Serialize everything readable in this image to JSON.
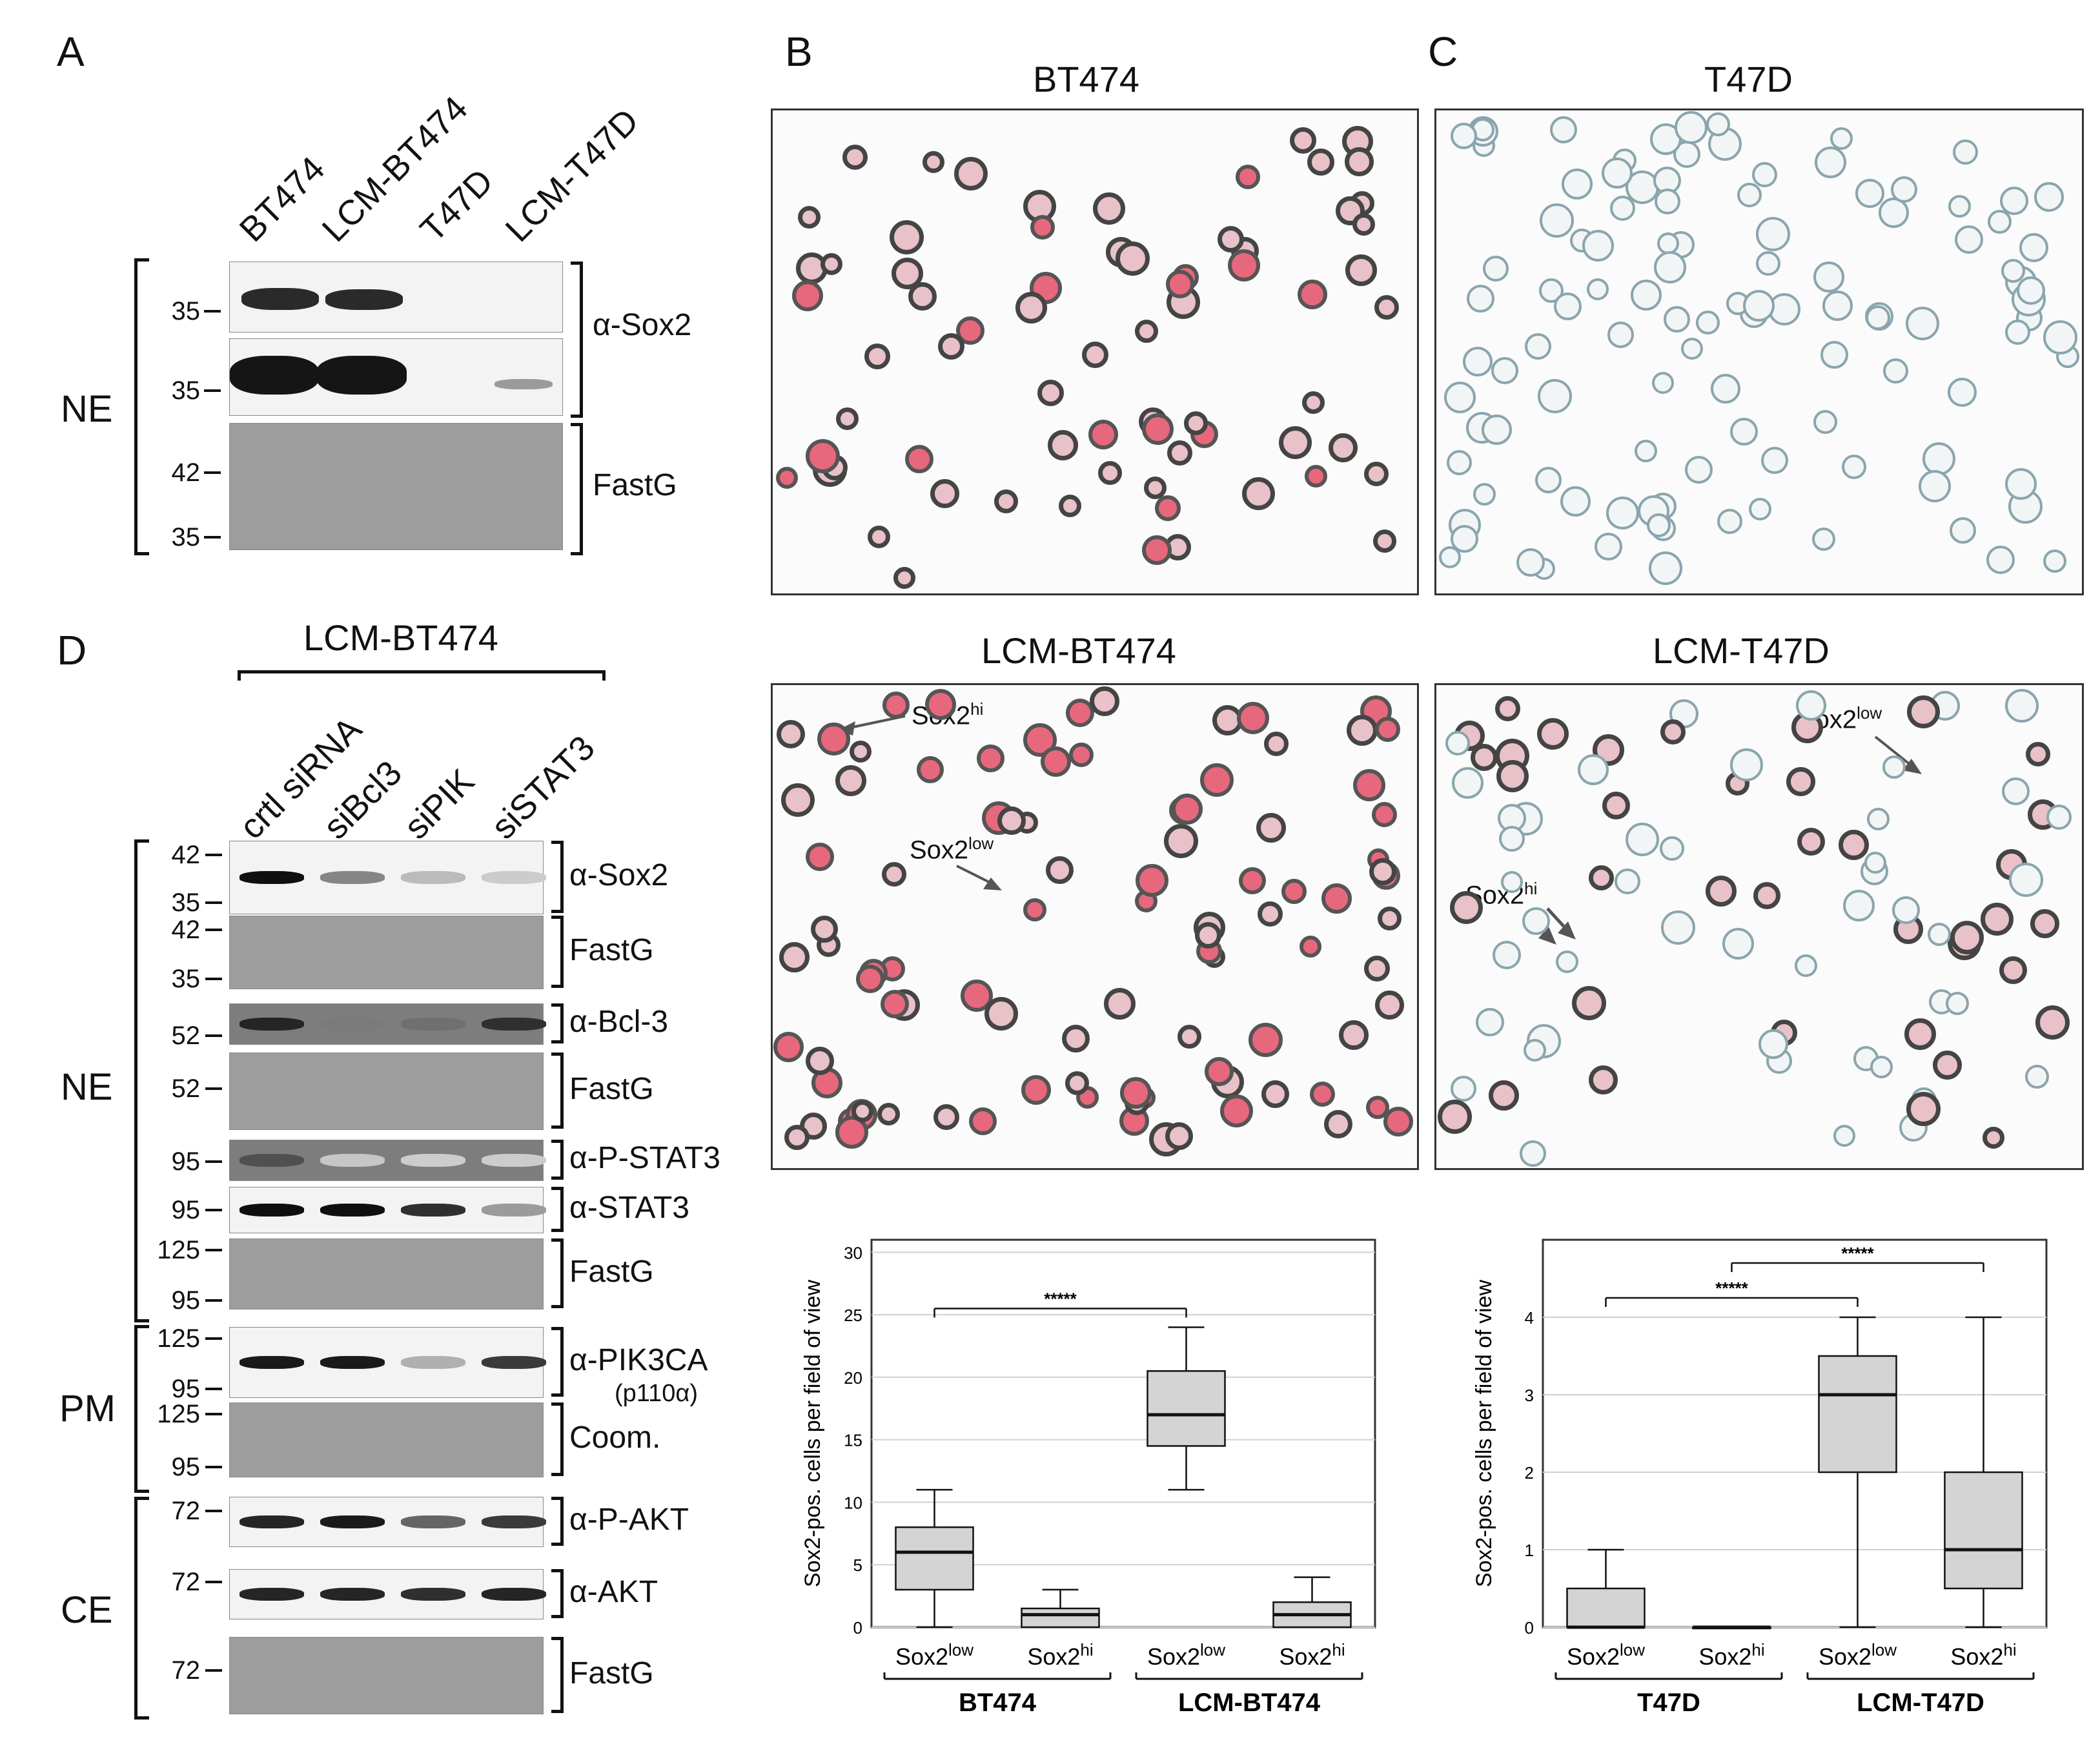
{
  "panel_labels": {
    "a": "A",
    "b": "B",
    "c": "C",
    "d": "D"
  },
  "panelA": {
    "lanes": [
      "BT474",
      "LCM-BT474",
      "T47D",
      "LCM-T47D"
    ],
    "group": "NE",
    "mw": {
      "sox2_short": "35",
      "sox2_long": "35",
      "fastg_top": "42",
      "fastg_bottom": "35"
    },
    "antibodies": {
      "sox2": "α-Sox2",
      "fastg": "FastG"
    }
  },
  "panelB": {
    "title_top": "BT474",
    "title_bottom": "LCM-BT474",
    "ann_hi": "Sox2",
    "ann_hi_sup": "hi",
    "ann_low": "Sox2",
    "ann_low_sup": "low"
  },
  "panelC": {
    "title_top": "T47D",
    "title_bottom": "LCM-T47D",
    "ann_hi": "Sox2",
    "ann_hi_sup": "hi",
    "ann_low": "Sox2",
    "ann_low_sup": "low"
  },
  "panelD": {
    "header": "LCM-BT474",
    "lanes": [
      "crtl siRNA",
      "siBcl3",
      "siPIK",
      "siSTAT3"
    ],
    "groups": {
      "ne": "NE",
      "pm": "PM",
      "ce": "CE"
    },
    "strips": [
      {
        "ab": "α-Sox2",
        "mw": [
          "42",
          "35"
        ]
      },
      {
        "ab": "FastG",
        "mw": [
          "42",
          "35"
        ]
      },
      {
        "ab": "α-Bcl-3",
        "mw": [
          "52"
        ]
      },
      {
        "ab": "FastG",
        "mw": [
          "52"
        ]
      },
      {
        "ab": "α-P-STAT3",
        "mw": [
          "95"
        ]
      },
      {
        "ab": "α-STAT3",
        "mw": [
          "95"
        ]
      },
      {
        "ab": "FastG",
        "mw": [
          "125",
          "95"
        ]
      },
      {
        "ab": "α-PIK3CA",
        "sub": "(p110α)",
        "mw": [
          "125",
          "95"
        ]
      },
      {
        "ab": "Coom.",
        "mw": [
          "125",
          "95"
        ]
      },
      {
        "ab": "α-P-AKT",
        "mw": [
          "72"
        ]
      },
      {
        "ab": "α-AKT",
        "mw": [
          "72"
        ]
      },
      {
        "ab": "FastG",
        "mw": [
          "72"
        ]
      }
    ]
  },
  "chart_data": [
    {
      "type": "box",
      "ylabel": "Sox2-pos. cells per field of view",
      "ylim": [
        0,
        31
      ],
      "yticks": [
        0,
        5,
        10,
        15,
        20,
        25,
        30
      ],
      "grid": true,
      "categories": [
        "Sox2low",
        "Sox2hi",
        "Sox2low",
        "Sox2hi"
      ],
      "category_main": [
        "Sox2",
        "Sox2",
        "Sox2",
        "Sox2"
      ],
      "category_sup": [
        "low",
        "hi",
        "low",
        "hi"
      ],
      "groups": [
        "BT474",
        "LCM-BT474"
      ],
      "boxes": [
        {
          "min": 0,
          "q1": 3,
          "median": 6,
          "q3": 8,
          "max": 11
        },
        {
          "min": 0,
          "q1": 0,
          "median": 1,
          "q3": 1.5,
          "max": 3
        },
        {
          "min": 11,
          "q1": 14.5,
          "median": 17,
          "q3": 20.5,
          "max": 24
        },
        {
          "min": 0,
          "q1": 0,
          "median": 1,
          "q3": 2,
          "max": 4
        }
      ],
      "significance": [
        {
          "from": 0,
          "to": 2,
          "label": "*****",
          "y": 25.5
        }
      ]
    },
    {
      "type": "box",
      "ylabel": "Sox2-pos. cells per field of view",
      "ylim": [
        0,
        5
      ],
      "yticks": [
        0,
        1,
        2,
        3,
        4
      ],
      "grid": true,
      "categories": [
        "Sox2low",
        "Sox2hi",
        "Sox2low",
        "Sox2hi"
      ],
      "category_main": [
        "Sox2",
        "Sox2",
        "Sox2",
        "Sox2"
      ],
      "category_sup": [
        "low",
        "hi",
        "low",
        "hi"
      ],
      "groups": [
        "T47D",
        "LCM-T47D"
      ],
      "boxes": [
        {
          "min": 0,
          "q1": 0,
          "median": 0,
          "q3": 0.5,
          "max": 1
        },
        {
          "min": 0,
          "q1": 0,
          "median": 0,
          "q3": 0,
          "max": 0
        },
        {
          "min": 0,
          "q1": 2,
          "median": 3,
          "q3": 3.5,
          "max": 4
        },
        {
          "min": 0,
          "q1": 0.5,
          "median": 1,
          "q3": 2,
          "max": 4
        }
      ],
      "significance": [
        {
          "from": 0,
          "to": 2,
          "label": "*****",
          "y": 4.25
        },
        {
          "from": 1,
          "to": 3,
          "label": "*****",
          "y": 4.7
        }
      ]
    }
  ]
}
